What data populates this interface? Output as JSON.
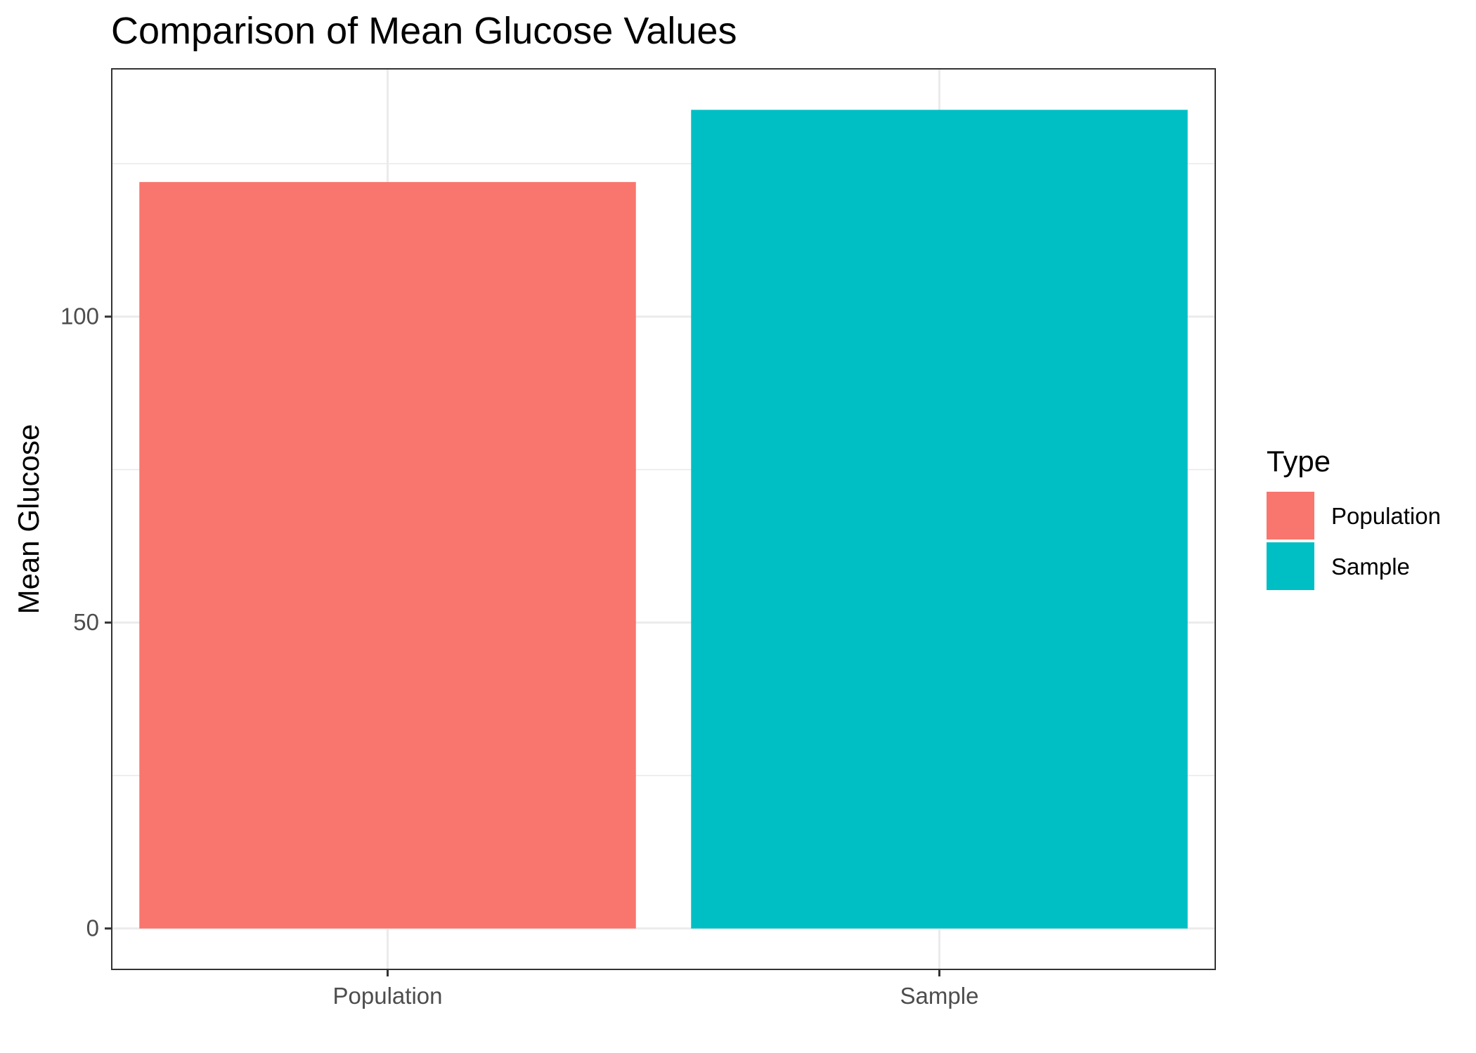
{
  "chart_data": {
    "type": "bar",
    "title": "Comparison of Mean Glucose Values",
    "xlabel": "",
    "ylabel": "Mean Glucose",
    "categories": [
      "Population",
      "Sample"
    ],
    "values": [
      122,
      133.8
    ],
    "colors": [
      "#F8766D",
      "#00BFC4"
    ],
    "ylim": [
      -6.69,
      140.5
    ],
    "y_ticks": [
      0,
      50,
      100
    ],
    "y_tick_labels": [
      "0",
      "50",
      "100"
    ],
    "y_minor_ticks": [
      25,
      75,
      125
    ],
    "grid": true,
    "legend": {
      "title": "Type",
      "position": "right",
      "items": [
        {
          "label": "Population",
          "color": "#F8766D"
        },
        {
          "label": "Sample",
          "color": "#00BFC4"
        }
      ]
    }
  }
}
